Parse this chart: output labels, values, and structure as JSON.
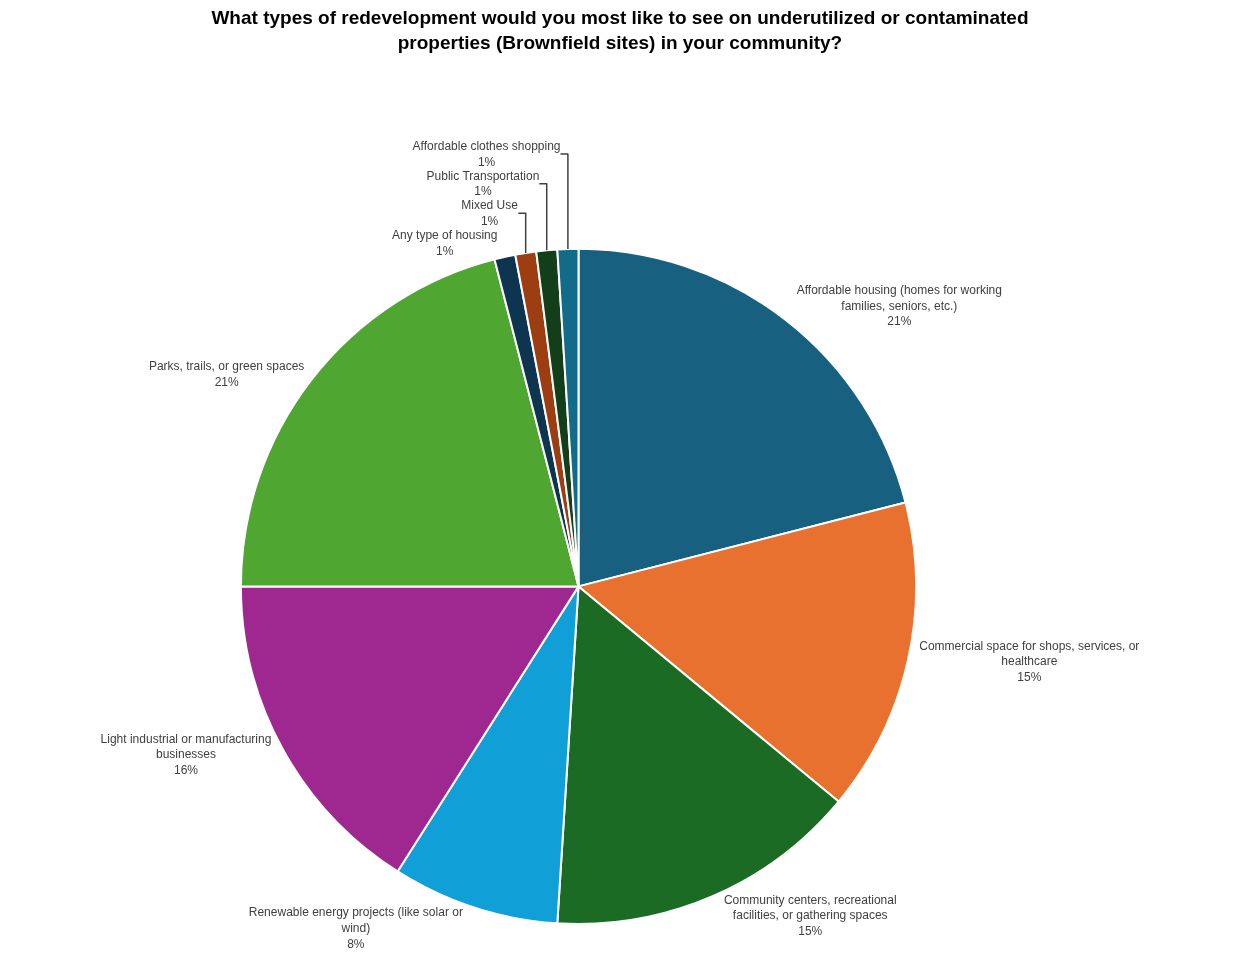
{
  "chart_data": {
    "type": "pie",
    "title": "What types of redevelopment would you most like to see on underutilized or contaminated properties (Brownfield sites) in your community?",
    "categories": [
      "Affordable housing (homes for working families, seniors, etc.)",
      "Commercial space for shops, services, or healthcare",
      "Community centers, recreational facilities, or gathering spaces",
      "Renewable energy projects (like solar or wind)",
      "Light industrial or manufacturing businesses",
      "Parks, trails, or green spaces",
      "Any type of housing",
      "Mixed Use",
      "Public Transportation",
      "Affordable clothes shopping"
    ],
    "values": [
      21,
      15,
      15,
      8,
      16,
      21,
      1,
      1,
      1,
      1
    ],
    "value_labels": [
      "21%",
      "15%",
      "15%",
      "8%",
      "16%",
      "21%",
      "1%",
      "1%",
      "1%",
      "1%"
    ],
    "colors": [
      "#17607f",
      "#e8712f",
      "#1b6b24",
      "#119fd7",
      "#9e2890",
      "#4fa631",
      "#0e3550",
      "#9c3e12",
      "#123f1a",
      "#136b8a"
    ],
    "legend": false
  }
}
